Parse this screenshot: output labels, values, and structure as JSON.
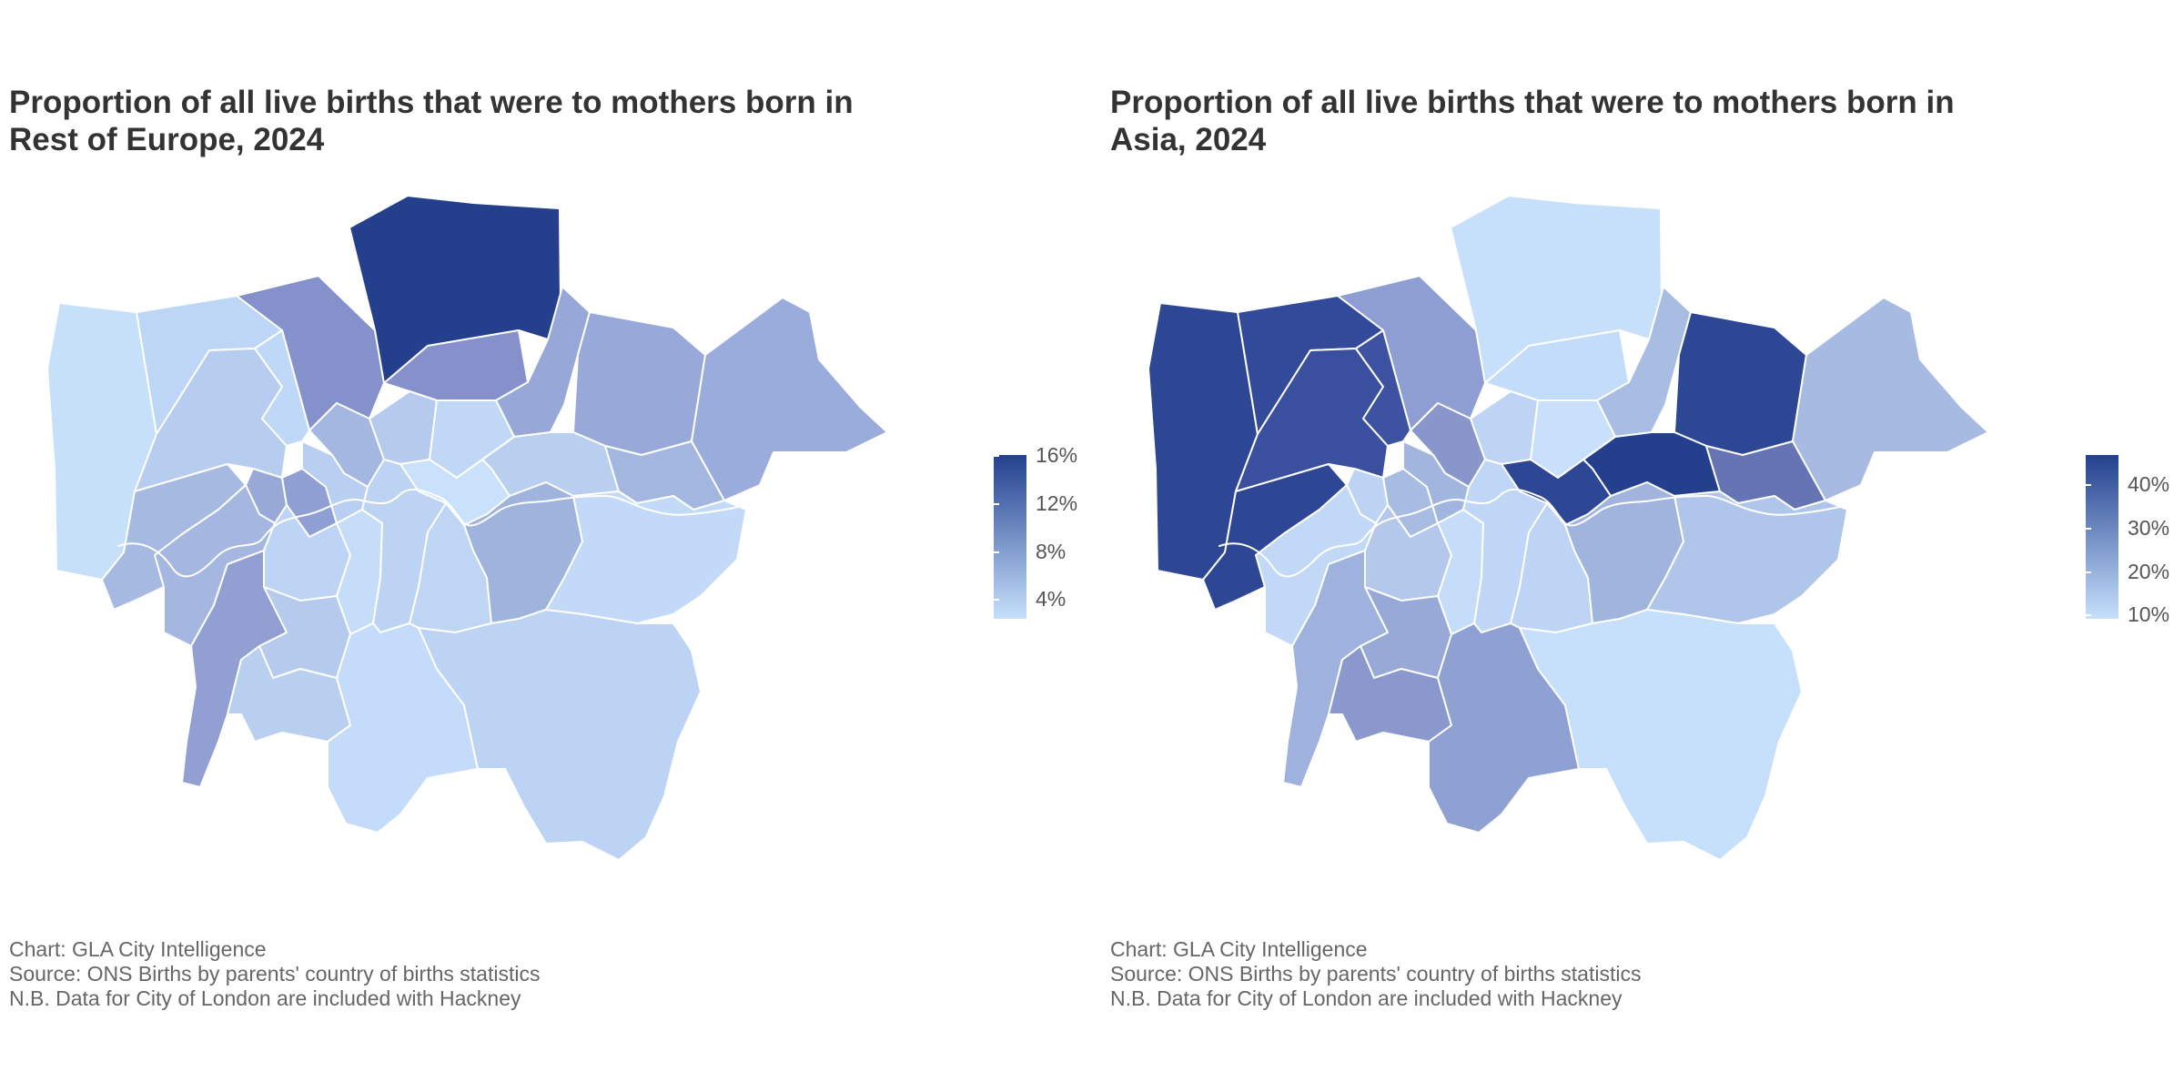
{
  "maps": [
    {
      "title_line1": "Proportion of all live births that were to mothers born in",
      "title_line2": "Rest of Europe, 2024",
      "legend": {
        "labels": [
          "16%",
          "12%",
          "8%",
          "4%"
        ],
        "color_low": "#c6e0fc",
        "color_high": "#23408e",
        "range": [
          2,
          16
        ]
      },
      "colors": {
        "Hillingdon": "#c7e0fa",
        "Harrow": "#bdd6f5",
        "Barnet": "#8591ca",
        "Enfield": "#24408c",
        "Haringey": "#8690cb",
        "Waltham Forest": "#97a8d8",
        "Redbridge": "#97a8d9",
        "Havering": "#99acdb",
        "Ealing": "#b7cdf0",
        "Brent": "#c0d8f7",
        "Camden": "#a4b7e0",
        "Islington": "#b5caed",
        "Hackney": "#c0d7f6",
        "Newham": "#b8cfef",
        "Barking": "#a3b6df",
        "Hounslow": "#a6b9e0",
        "Hammersmith": "#98a9d8",
        "Kensington": "#8f9ed3",
        "Westminster": "#b9cff1",
        "Tower Hamlets": "#c9e1fb",
        "Richmond": "#a5b7e0",
        "Wandsworth": "#bed4f5",
        "Lambeth": "#c6ddf9",
        "Southwark": "#bcd3f3",
        "Lewisham": "#bed5f4",
        "Greenwich": "#9fb3dd",
        "Bexley": "#c2daf8",
        "Kingston": "#919fd3",
        "Merton": "#b5caec",
        "Sutton": "#b9cff0",
        "Croydon": "#c4dcf9",
        "Bromley": "#bcd3f3"
      },
      "caption": [
        "Chart: GLA City Intelligence",
        "Source: ONS Births by parents' country of births statistics",
        "N.B. Data for City of London are included with Hackney"
      ]
    },
    {
      "title_line1": "Proportion of all live births that were to mothers born in",
      "title_line2": "Asia, 2024",
      "legend": {
        "labels": [
          "40%",
          "30%",
          "20%",
          "10%"
        ],
        "color_low": "#c6e0fc",
        "color_high": "#23408e",
        "range": [
          7,
          48
        ]
      },
      "colors": {
        "Hillingdon": "#2e4794",
        "Harrow": "#33499a",
        "Barnet": "#8e9ed2",
        "Enfield": "#c6e0fc",
        "Haringey": "#c3dcf9",
        "Waltham Forest": "#a9bde3",
        "Redbridge": "#2e4794",
        "Havering": "#a7bbe2",
        "Ealing": "#3a509e",
        "Brent": "#3d52a0",
        "Camden": "#8896cc",
        "Islington": "#bdd4f4",
        "Hackney": "#c8e0fb",
        "Newham": "#24408c",
        "Barking": "#6674b4",
        "Hounslow": "#2e4794",
        "Hammersmith": "#bcd3f3",
        "Kensington": "#a8bce2",
        "Westminster": "#a2b5df",
        "Tower Hamlets": "#2e4794",
        "Richmond": "#c1d9f6",
        "Wandsworth": "#b4c8ec",
        "Lambeth": "#c6ddf9",
        "Southwark": "#c0d6f6",
        "Lewisham": "#bdd4f4",
        "Greenwich": "#a1b4de",
        "Bexley": "#b0c5ea",
        "Kingston": "#9fb2dd",
        "Merton": "#98a9d8",
        "Sutton": "#8a98cd",
        "Croydon": "#8fa0d3",
        "Bromley": "#c6dffb"
      },
      "caption": [
        "Chart: GLA City Intelligence",
        "Source: ONS Births by parents' country of births statistics",
        "N.B. Data for City of London are included with Hackney"
      ]
    }
  ]
}
